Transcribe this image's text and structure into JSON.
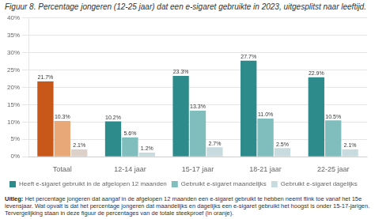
{
  "chart_data": {
    "type": "bar",
    "title": "Figuur 8. Percentage jongeren (12-25 jaar) dat een e-sigaret gebruikte in 2023, uitgesplitst naar leeftijd.",
    "categories": [
      "Totaal",
      "12-14 jaar",
      "15-17 jaar",
      "18-21 jaar",
      "22-25 jaar"
    ],
    "series": [
      {
        "name": "Heeft e-sigaret gebruikt in de afgelopen 12 maanden",
        "color": "#2e8b8b",
        "colors": [
          "#c8581a",
          "#2e8b8b",
          "#2e8b8b",
          "#2e8b8b",
          "#2e8b8b"
        ],
        "values": [
          21.7,
          10.2,
          23.3,
          27.7,
          22.9
        ],
        "value_labels": [
          "21.7%",
          "10.2%",
          "23.3%",
          "27.7%",
          "22.9%"
        ]
      },
      {
        "name": "Gebruikt e-sigaret maandelijks",
        "color": "#80bebe",
        "colors": [
          "#e8a878",
          "#80bebe",
          "#80bebe",
          "#80bebe",
          "#80bebe"
        ],
        "values": [
          10.3,
          5.6,
          13.3,
          11.0,
          10.5
        ],
        "value_labels": [
          "10.3%",
          "5.6%",
          "13.3%",
          "11.0%",
          "10.5%"
        ]
      },
      {
        "name": "Gebruikt e-sigaret dagelijks",
        "color": "#c8dce0",
        "colors": [
          "#ddd0c8",
          "#c8dce0",
          "#c8dce0",
          "#c8dce0",
          "#c8dce0"
        ],
        "values": [
          2.1,
          1.2,
          2.7,
          2.5,
          2.1
        ],
        "value_labels": [
          "2.1%",
          "1.2%",
          "2.7%",
          "2.5%",
          "2.1%"
        ]
      }
    ],
    "ylim": [
      0,
      40
    ],
    "yticks": [
      {
        "value": 0,
        "label": "0%"
      },
      {
        "value": 5,
        "label": "5%"
      },
      {
        "value": 10,
        "label": "10%"
      },
      {
        "value": 15,
        "label": "15%"
      },
      {
        "value": 20,
        "label": "20%"
      },
      {
        "value": 25,
        "label": "25%"
      },
      {
        "value": 30,
        "label": "30%"
      },
      {
        "value": 35,
        "label": "35%"
      },
      {
        "value": 40,
        "label": "40%"
      }
    ],
    "grid": true,
    "legend": "bottom",
    "data_labels": true,
    "annotations": [
      "Uitleg:",
      "Het percentage jongeren dat aangaf in de afgelopen 12 maanden een e-sigaret gebruikt te hebben neemt flink toe vanaf het 15e levensjaar. Wat opvalt is dat het percentage jongeren dat maandelijks en dagelijks een e-sigaret gebruikt het hoogst is onder 15-17-jarigen. Tervergelijking staan in deze figuur de percentages van de totale steekproef (in oranje)."
    ]
  }
}
